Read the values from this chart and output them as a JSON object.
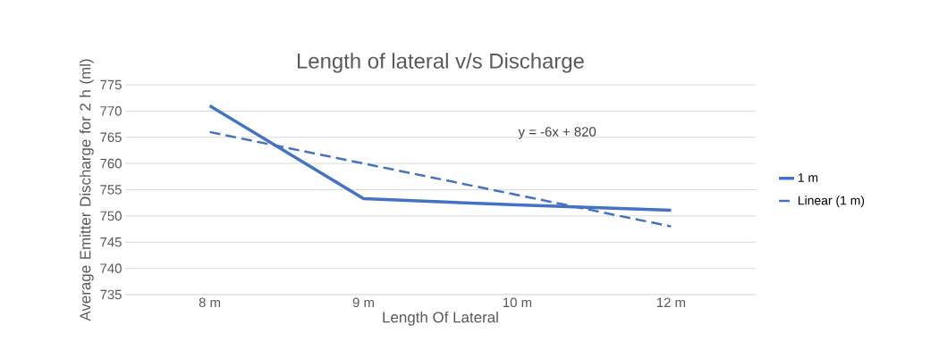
{
  "chart_data": {
    "type": "line",
    "title": "Length of lateral v/s Discharge",
    "xlabel": "Length Of Lateral",
    "ylabel": "Average Emitter Discharge for 2 h (ml)",
    "categories": [
      "8 m",
      "9 m",
      "10 m",
      "12 m"
    ],
    "series": [
      {
        "name": "1 m",
        "color": "#4472c4",
        "values": [
          771,
          753.3,
          752.1,
          751.1
        ],
        "line_style": "solid"
      },
      {
        "name": "Linear (1 m)",
        "color": "#4472c4",
        "values": [
          766,
          760,
          754,
          748
        ],
        "line_style": "dashed"
      }
    ],
    "annotations": [
      "y = -6x + 820"
    ],
    "ylim": [
      735,
      775
    ],
    "yticks": [
      735,
      740,
      745,
      750,
      755,
      760,
      765,
      770,
      775
    ],
    "grid": "y",
    "legend": "right",
    "marker": "none"
  }
}
